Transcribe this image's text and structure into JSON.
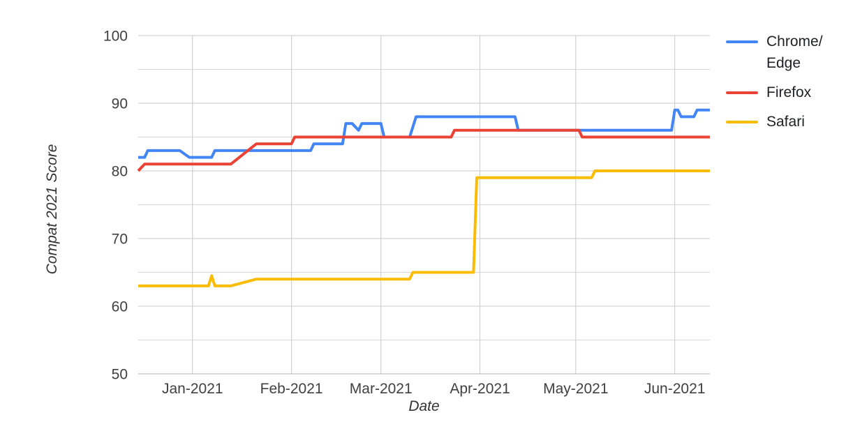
{
  "chart_data": {
    "type": "line",
    "title": "",
    "xlabel": "Date",
    "ylabel": "Compat 2021 Score",
    "x_axis": {
      "kind": "date",
      "range": [
        "2020-12-15",
        "2021-06-12"
      ],
      "ticks": [
        {
          "date": "2021-01-01",
          "label": "Jan-2021"
        },
        {
          "date": "2021-02-01",
          "label": "Feb-2021"
        },
        {
          "date": "2021-03-01",
          "label": "Mar-2021"
        },
        {
          "date": "2021-04-01",
          "label": "Apr-2021"
        },
        {
          "date": "2021-05-01",
          "label": "May-2021"
        },
        {
          "date": "2021-06-01",
          "label": "Jun-2021"
        }
      ]
    },
    "y_axis": {
      "ylim": [
        50,
        100
      ],
      "major_ticks": [
        50,
        60,
        70,
        80,
        90,
        100
      ],
      "gridline_step": 5
    },
    "grid": "on",
    "legend_position": "right",
    "colors": {
      "grid_major": "#c9c9c9",
      "grid_minor": "#d6d6d6",
      "axis_line": "#b0b0b0",
      "tick_text": "#404040",
      "legend_text": "#202124",
      "axis_title_text": "#333333",
      "background": "#ffffff"
    },
    "series": [
      {
        "name": "Chrome/Edge",
        "color": "#4285F4",
        "points": [
          [
            "2020-12-15",
            82
          ],
          [
            "2020-12-17",
            82
          ],
          [
            "2020-12-18",
            83
          ],
          [
            "2020-12-28",
            83
          ],
          [
            "2020-12-31",
            82
          ],
          [
            "2021-01-07",
            82
          ],
          [
            "2021-01-08",
            83
          ],
          [
            "2021-02-07",
            83
          ],
          [
            "2021-02-08",
            84
          ],
          [
            "2021-02-17",
            84
          ],
          [
            "2021-02-18",
            87
          ],
          [
            "2021-02-20",
            87
          ],
          [
            "2021-02-22",
            86
          ],
          [
            "2021-02-23",
            87
          ],
          [
            "2021-03-01",
            87
          ],
          [
            "2021-03-02",
            85
          ],
          [
            "2021-03-10",
            85
          ],
          [
            "2021-03-12",
            88
          ],
          [
            "2021-04-12",
            88
          ],
          [
            "2021-04-13",
            86
          ],
          [
            "2021-05-31",
            86
          ],
          [
            "2021-06-01",
            89
          ],
          [
            "2021-06-02",
            89
          ],
          [
            "2021-06-03",
            88
          ],
          [
            "2021-06-07",
            88
          ],
          [
            "2021-06-08",
            89
          ],
          [
            "2021-06-12",
            89
          ]
        ]
      },
      {
        "name": "Firefox",
        "color": "#EA4335",
        "points": [
          [
            "2020-12-15",
            80
          ],
          [
            "2020-12-17",
            81
          ],
          [
            "2021-01-13",
            81
          ],
          [
            "2021-01-21",
            84
          ],
          [
            "2021-02-01",
            84
          ],
          [
            "2021-02-02",
            85
          ],
          [
            "2021-03-23",
            85
          ],
          [
            "2021-03-24",
            86
          ],
          [
            "2021-05-02",
            86
          ],
          [
            "2021-05-03",
            85
          ],
          [
            "2021-06-12",
            85
          ]
        ]
      },
      {
        "name": "Safari",
        "color": "#FBBC04",
        "points": [
          [
            "2020-12-15",
            63
          ],
          [
            "2021-01-06",
            63
          ],
          [
            "2021-01-07",
            64.5
          ],
          [
            "2021-01-08",
            63
          ],
          [
            "2021-01-13",
            63
          ],
          [
            "2021-01-21",
            64
          ],
          [
            "2021-03-10",
            64
          ],
          [
            "2021-03-11",
            65
          ],
          [
            "2021-03-30",
            65
          ],
          [
            "2021-03-31",
            79
          ],
          [
            "2021-05-06",
            79
          ],
          [
            "2021-05-07",
            80
          ],
          [
            "2021-06-12",
            80
          ]
        ]
      }
    ]
  },
  "legend": {
    "items": [
      {
        "label": "Chrome/Edge"
      },
      {
        "label": "Firefox"
      },
      {
        "label": "Safari"
      }
    ]
  }
}
